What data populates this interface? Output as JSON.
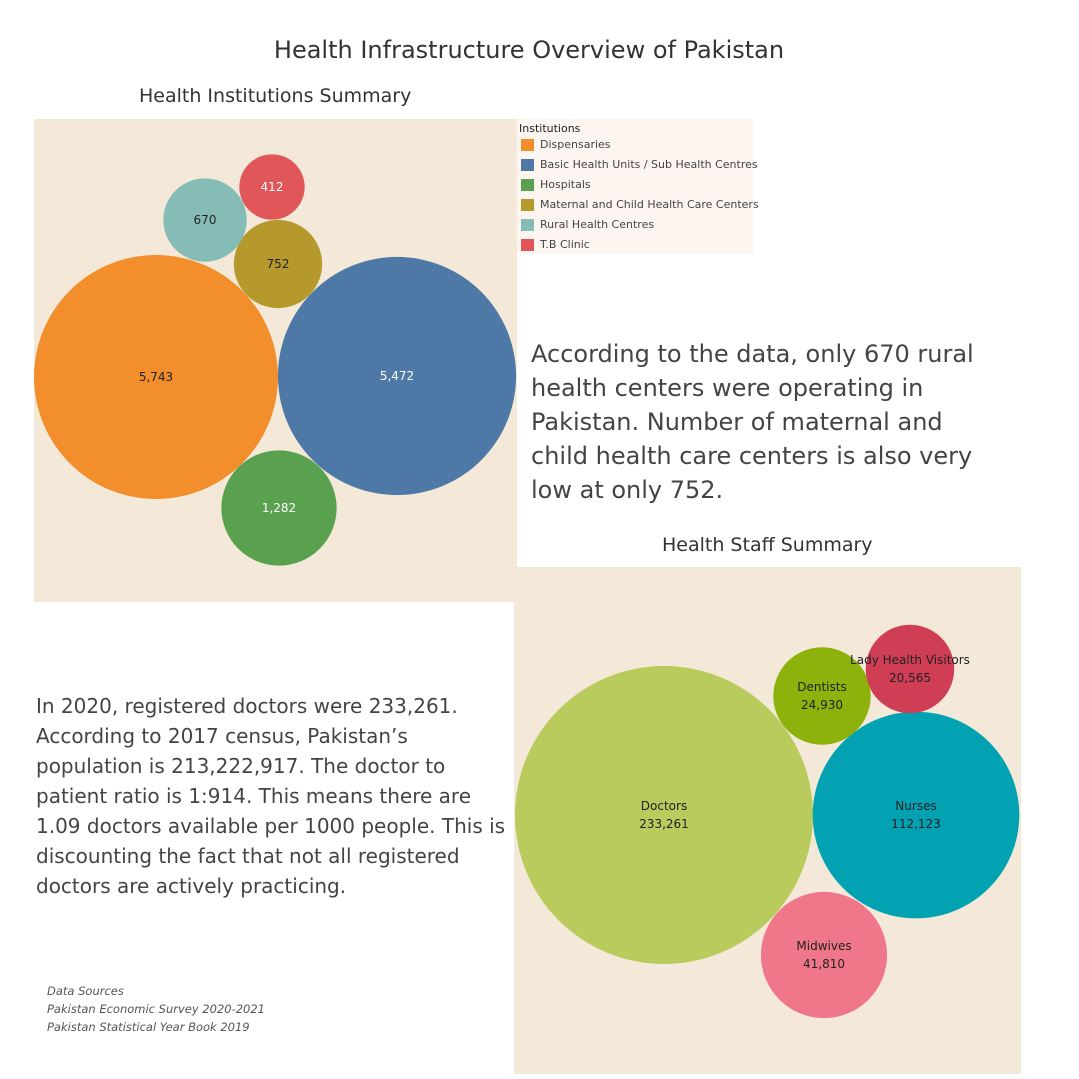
{
  "title": "Health Infrastructure Overview of Pakistan",
  "institutions": {
    "subtitle": "Health Institutions Summary",
    "legend_title": "Institutions",
    "narrative": "According to the data, only 670 rural health centers were operating in Pakistan. Number of maternal and child health care centers is also very low at only 752."
  },
  "staff": {
    "subtitle": "Health Staff Summary",
    "narrative": "In 2020, registered doctors were 233,261. According to 2017 census, Pakistan’s population is 213,222,917. The doctor to patient ratio is 1:914. This means there are 1.09 doctors available per 1000 people. This is discounting the fact that not all registered doctors are actively practicing."
  },
  "sources": {
    "heading": "Data Sources",
    "line1": "Pakistan Economic Survey 2020-2021",
    "line2": "Pakistan Statistical Year Book 2019"
  },
  "chart_data": [
    {
      "type": "packed-bubble",
      "title": "Health Institutions Summary",
      "legend_title": "Institutions",
      "legend_position": "top-right",
      "series": [
        {
          "name": "Dispensaries",
          "value": 5743,
          "label": "5,743",
          "color": "#f28e2b"
        },
        {
          "name": "Basic Health Units / Sub Health Centres",
          "value": 5472,
          "label": "5,472",
          "color": "#4e79a7"
        },
        {
          "name": "Hospitals",
          "value": 1282,
          "label": "1,282",
          "color": "#59a14f"
        },
        {
          "name": "Maternal and Child Health Care Centers",
          "value": 752,
          "label": "752",
          "color": "#b6992d"
        },
        {
          "name": "Rural Health Centres",
          "value": 670,
          "label": "670",
          "color": "#86bcb6"
        },
        {
          "name": "T.B Clinic",
          "value": 412,
          "label": "412",
          "color": "#e15759"
        }
      ]
    },
    {
      "type": "packed-bubble",
      "title": "Health Staff Summary",
      "series": [
        {
          "name": "Doctors",
          "value": 233261,
          "label": "233,261",
          "color": "#b9cb5d"
        },
        {
          "name": "Nurses",
          "value": 112123,
          "label": "112,123",
          "color": "#02a2b3"
        },
        {
          "name": "Midwives",
          "value": 41810,
          "label": "41,810",
          "color": "#f07689"
        },
        {
          "name": "Dentists",
          "value": 24930,
          "label": "24,930",
          "color": "#8db20c"
        },
        {
          "name": "Lady Health Visitors",
          "value": 20565,
          "label": "20,565",
          "color": "#cf3e55"
        }
      ]
    }
  ]
}
